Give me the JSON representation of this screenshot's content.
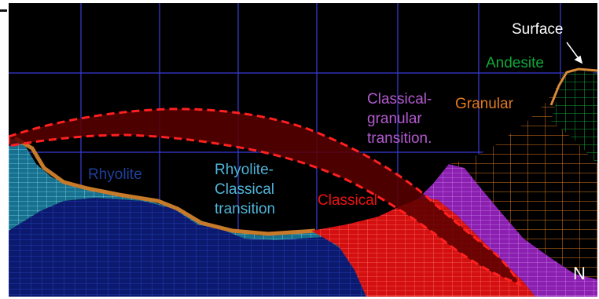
{
  "labels": {
    "surface": "Surface",
    "andesite": "Andesite",
    "granular": "Granular",
    "classical_granular_line1": "Classical-",
    "classical_granular_line2": "granular",
    "classical_granular_line3": "transition.",
    "rhyolite": "Rhyolite",
    "rhyolite_classical_line1": "Rhyolite-",
    "rhyolite_classical_line2": "Classical",
    "rhyolite_classical_line3": "transition",
    "classical": "Classical",
    "north": "N"
  },
  "colors": {
    "background": "#000000",
    "grid": "#3b3bd6",
    "rhyolite": "#1f3f9a",
    "rhyolite_classical_transition": "#4fb4d8",
    "classical": "#ee1111",
    "classical_granular_transition": "#b45ad0",
    "granular": "#e17a1e",
    "andesite": "#10a838",
    "surface": "#ffffff",
    "dashed_outline": "#ff2020"
  }
}
